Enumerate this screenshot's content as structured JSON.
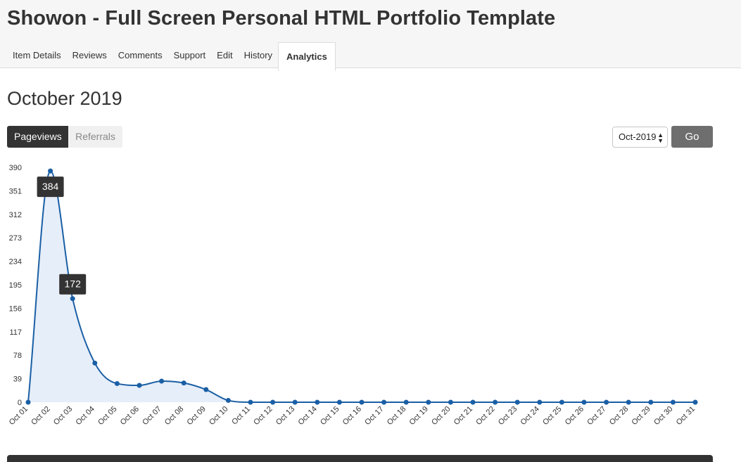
{
  "header": {
    "title": "Showon - Full Screen Personal HTML Portfolio Template",
    "tabs": [
      {
        "label": "Item Details",
        "active": false
      },
      {
        "label": "Reviews",
        "active": false
      },
      {
        "label": "Comments",
        "active": false
      },
      {
        "label": "Support",
        "active": false
      },
      {
        "label": "Edit",
        "active": false
      },
      {
        "label": "History",
        "active": false
      },
      {
        "label": "Analytics",
        "active": true
      }
    ]
  },
  "main": {
    "heading": "October 2019",
    "toggle": {
      "pageviews": "Pageviews",
      "referrals": "Referrals",
      "selected": "Pageviews"
    },
    "month_select": {
      "value": "Oct-2019"
    },
    "go_label": "Go"
  },
  "colors": {
    "line": "#1a5fa5",
    "fill": "#e6eef9",
    "tooltip_bg": "#333333",
    "active_toggle": "#333333",
    "go_button": "#6e6e6e"
  },
  "chart_data": {
    "type": "area",
    "x": [
      "Oct 01",
      "Oct 02",
      "Oct 03",
      "Oct 04",
      "Oct 05",
      "Oct 06",
      "Oct 07",
      "Oct 08",
      "Oct 09",
      "Oct 10",
      "Oct 11",
      "Oct 12",
      "Oct 13",
      "Oct 14",
      "Oct 15",
      "Oct 16",
      "Oct 17",
      "Oct 18",
      "Oct 19",
      "Oct 20",
      "Oct 21",
      "Oct 22",
      "Oct 23",
      "Oct 24",
      "Oct 25",
      "Oct 26",
      "Oct 27",
      "Oct 28",
      "Oct 29",
      "Oct 30",
      "Oct 31"
    ],
    "values": [
      0,
      384,
      172,
      65,
      31,
      28,
      35,
      32,
      21,
      3,
      0,
      0,
      0,
      0,
      0,
      0,
      0,
      0,
      0,
      0,
      0,
      0,
      0,
      0,
      0,
      0,
      0,
      0,
      0,
      0,
      0
    ],
    "yticks": [
      0,
      39,
      78,
      117,
      156,
      195,
      234,
      273,
      312,
      351,
      390
    ],
    "ylim": [
      0,
      390
    ],
    "grid": false,
    "tooltips": [
      {
        "index": 1,
        "label": "384"
      },
      {
        "index": 2,
        "label": "172"
      }
    ]
  }
}
